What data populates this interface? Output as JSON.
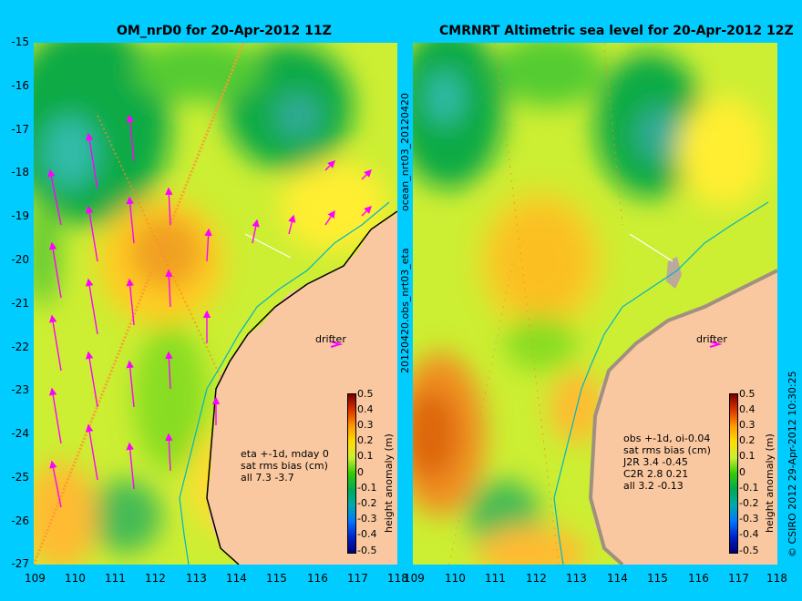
{
  "colors": {
    "background": "#00ccff",
    "land": "#f9c8a0",
    "drifter": "#ff00ff",
    "coastline": "#00b4c8",
    "white_line": "#ffffff"
  },
  "map": {
    "xlim": [
      109,
      118
    ],
    "ylim": [
      -27,
      -15
    ],
    "x_ticks": [
      "109",
      "110",
      "111",
      "112",
      "113",
      "114",
      "115",
      "116",
      "117",
      "118"
    ],
    "y_ticks": [
      "-15",
      "-16",
      "-17",
      "-18",
      "-19",
      "-20",
      "-21",
      "-22",
      "-23",
      "-24",
      "-25",
      "-26",
      "-27"
    ]
  },
  "left_panel": {
    "title": "OM_nrD0 for 20-Apr-2012 11Z",
    "side_label": "ocean_nrt03_20120420",
    "drifter_label": "drifter",
    "annotation": [
      "eta +-1d, mday 0",
      "sat rms bias (cm)",
      "all 7.3 -3.7"
    ],
    "colorbar_label": "height anomaly (m)",
    "colorbar_ticks": [
      "0.5",
      "0.4",
      "0.3",
      "0.2",
      "0.1",
      "0",
      "-0.1",
      "-0.2",
      "-0.3",
      "-0.4",
      "-0.5"
    ]
  },
  "right_panel": {
    "title": "CMRNRT Altimetric sea level  for 20-Apr-2012 12Z",
    "side_label": "20120420.obs_nrt03_eta",
    "drifter_label": "drifter",
    "annotation": [
      "obs +-1d, oi-0.04",
      "sat rms bias (cm)",
      "J2R   3.4 -0.45",
      "C2R   2.8 0.21",
      "all 3.2 -0.13"
    ],
    "colorbar_label": "height anomaly (m)",
    "colorbar_ticks": [
      "0.5",
      "0.4",
      "0.3",
      "0.2",
      "0.1",
      "0",
      "-0.1",
      "-0.2",
      "-0.3",
      "-0.4",
      "-0.5"
    ]
  },
  "credit": "© CSIRO 2012   29-Apr-2012 10:30:25"
}
